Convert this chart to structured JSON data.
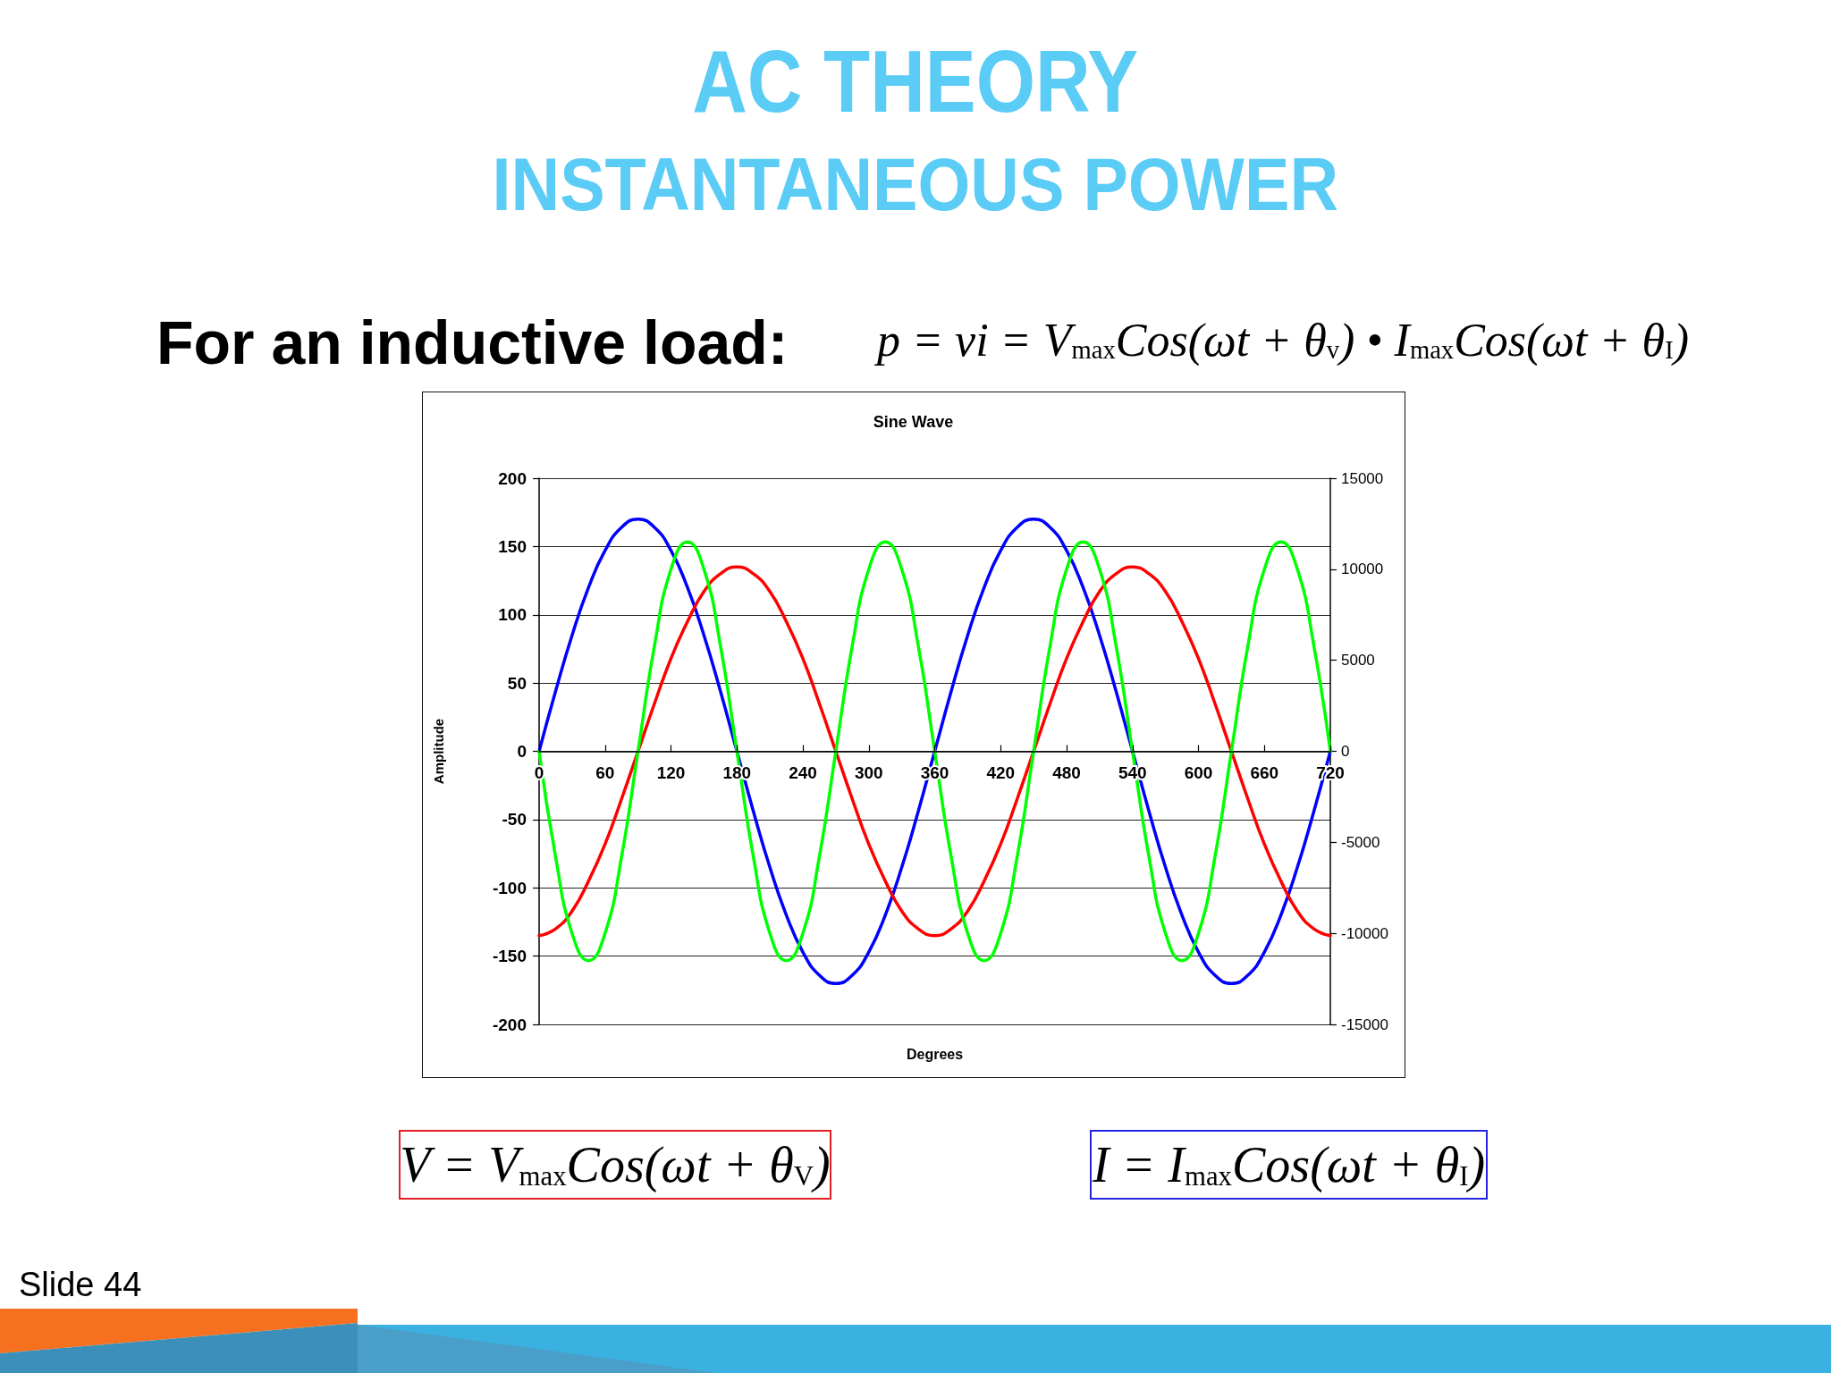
{
  "chart_data": {
    "type": "line",
    "title": "AC THEORY",
    "subtitle": "INSTANTANEOUS POWER",
    "xlabel": "Degrees",
    "ylabel": "Amplitude",
    "annotations": [
      "Sine Wave",
      "For an inductive load:",
      "p = vi = V$_{max}$Cos(ωt + θ$_{v}$) • I$_{max}$Cos(ωt + θ$_{I}$)",
      "V = V$_{max}$Cos(ωt + θ$_{V}$)",
      "I = I$_{max}$Cos(ωt + θ$_{I}$)",
      "Slide 44"
    ],
    "x": [
      0,
      15,
      30,
      45,
      60,
      75,
      90,
      105,
      120,
      135,
      150,
      165,
      180,
      195,
      210,
      225,
      240,
      255,
      270,
      285,
      300,
      315,
      330,
      345,
      360,
      375,
      390,
      405,
      420,
      435,
      450,
      465,
      480,
      495,
      510,
      525,
      540,
      555,
      570,
      585,
      600,
      615,
      630,
      645,
      660,
      675,
      690,
      705,
      720
    ],
    "series": [
      {
        "color": "#0000ff",
        "values": [
          0,
          44,
          85,
          120,
          147,
          164,
          170,
          164,
          147,
          120,
          85,
          44,
          0,
          -44,
          -85,
          -120,
          -147,
          -164,
          -170,
          -164,
          -147,
          -120,
          -85,
          -44,
          0,
          44,
          85,
          120,
          147,
          164,
          170,
          164,
          147,
          120,
          85,
          44,
          0,
          -44,
          -85,
          -120,
          -147,
          -164,
          -170,
          -164,
          -147,
          -120,
          -85,
          -44,
          0
        ]
      },
      {
        "color": "#ff0000",
        "values": [
          -135,
          -130,
          -117,
          -95,
          -68,
          -35,
          0,
          35,
          68,
          95,
          117,
          130,
          135,
          130,
          117,
          95,
          68,
          35,
          0,
          -35,
          -68,
          -95,
          -117,
          -130,
          -135,
          -130,
          -117,
          -95,
          -68,
          -35,
          0,
          35,
          68,
          95,
          117,
          130,
          135,
          130,
          117,
          95,
          68,
          35,
          0,
          -35,
          -68,
          -95,
          -117,
          -130,
          -135
        ]
      },
      {
        "color": "#00ff00",
        "axis": "y2",
        "values": [
          0,
          -5800,
          -10000,
          -11500,
          -10000,
          -5800,
          0,
          5800,
          10000,
          11500,
          10000,
          5800,
          0,
          -5800,
          -10000,
          -11500,
          -10000,
          -5800,
          0,
          5800,
          10000,
          11500,
          10000,
          5800,
          0,
          -5800,
          -10000,
          -11500,
          -10000,
          -5800,
          0,
          5800,
          10000,
          11500,
          10000,
          5800,
          0,
          -5800,
          -10000,
          -11500,
          -10000,
          -5800,
          0,
          5800,
          10000,
          11500,
          10000,
          5800,
          0
        ]
      }
    ],
    "xlim": [
      0,
      720
    ],
    "xticks": [
      0,
      60,
      120,
      180,
      240,
      300,
      360,
      420,
      480,
      540,
      600,
      660,
      720
    ],
    "ylim": [
      -200,
      200
    ],
    "yticks": [
      -200,
      -150,
      -100,
      -50,
      0,
      50,
      100,
      150,
      200
    ],
    "y2lim": [
      -15000,
      15000
    ],
    "y2ticks": [
      -15000,
      -10000,
      -5000,
      0,
      5000,
      10000,
      15000
    ],
    "grid": "y",
    "marker": "none"
  }
}
